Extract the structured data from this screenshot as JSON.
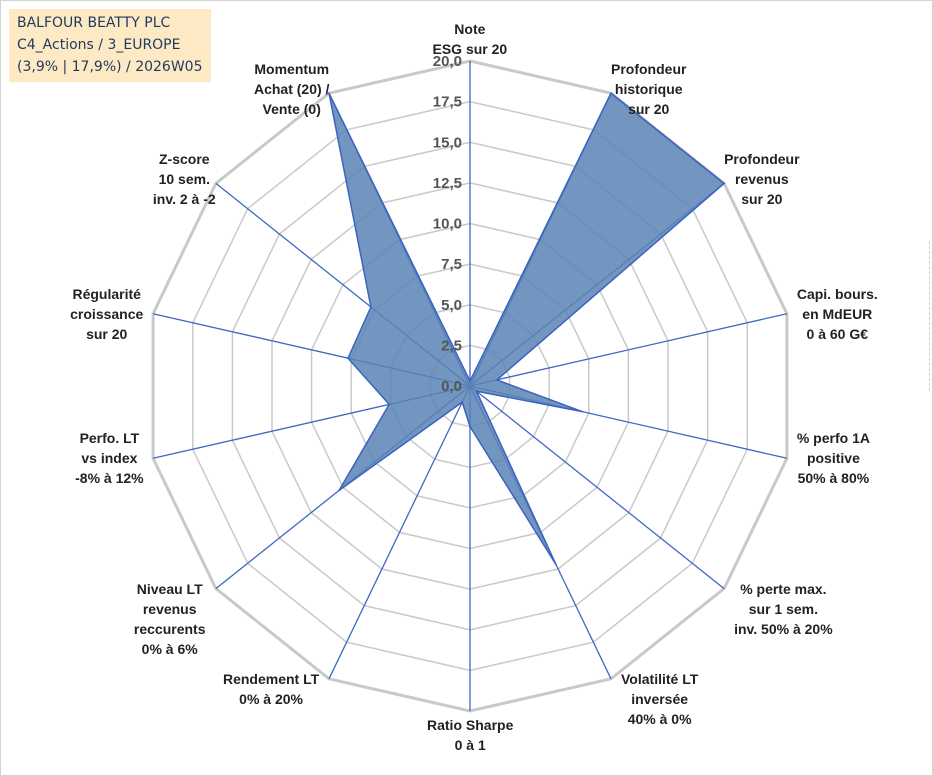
{
  "title": {
    "company": "BALFOUR BEATTY PLC",
    "category": "C4_Actions / 3_EUROPE",
    "detail": "(3,9% | 17,9%) / 2026W05"
  },
  "colors": {
    "fill": "#5b84b6",
    "stroke": "#3b63c0",
    "grid": "#c9c9c9",
    "spoke": "#3b68c2"
  },
  "chart_data": {
    "type": "radar",
    "rmin": 0,
    "rmax": 20,
    "tick_step": 2.5,
    "tick_labels": [
      "0,0",
      "2,5",
      "5,0",
      "7,5",
      "10,0",
      "12,5",
      "15,0",
      "17,5",
      "20,0"
    ],
    "axes": [
      {
        "lines": [
          "Note",
          "ESG sur 20"
        ],
        "value": 0.3
      },
      {
        "lines": [
          "Profondeur",
          "historique",
          "sur 20"
        ],
        "value": 20
      },
      {
        "lines": [
          "Profondeur",
          "revenus",
          "sur 20"
        ],
        "value": 20
      },
      {
        "lines": [
          "Capi. bours.",
          "en MdEUR",
          "0 à 60 G€"
        ],
        "value": 1.7
      },
      {
        "lines": [
          "% perfo 1A",
          "positive",
          "50% à 80%"
        ],
        "value": 7.1
      },
      {
        "lines": [
          "% perte max.",
          "sur 1 sem.",
          "inv. 50% à 20%"
        ],
        "value": 0.5
      },
      {
        "lines": [
          "Volatilité LT",
          "inversée",
          "40% à 0%"
        ],
        "value": 12.2
      },
      {
        "lines": [
          "Ratio Sharpe",
          "0 à 1"
        ],
        "value": 2.5
      },
      {
        "lines": [
          "Rendement LT",
          "0% à 20%"
        ],
        "value": 1.1
      },
      {
        "lines": [
          "Niveau LT",
          "revenus",
          "reccurents",
          "0% à 6%"
        ],
        "value": 10.3
      },
      {
        "lines": [
          "Perfo. LT",
          "vs index",
          "-8% à 12%"
        ],
        "value": 5.1
      },
      {
        "lines": [
          "Régularité",
          "croissance",
          "sur 20"
        ],
        "value": 7.7
      },
      {
        "lines": [
          "Z-score",
          "10 sem.",
          "inv. 2 à -2"
        ],
        "value": 7.8
      },
      {
        "lines": [
          "Momentum",
          "Achat (20) /",
          "Vente (0)"
        ],
        "value": 20
      }
    ]
  }
}
